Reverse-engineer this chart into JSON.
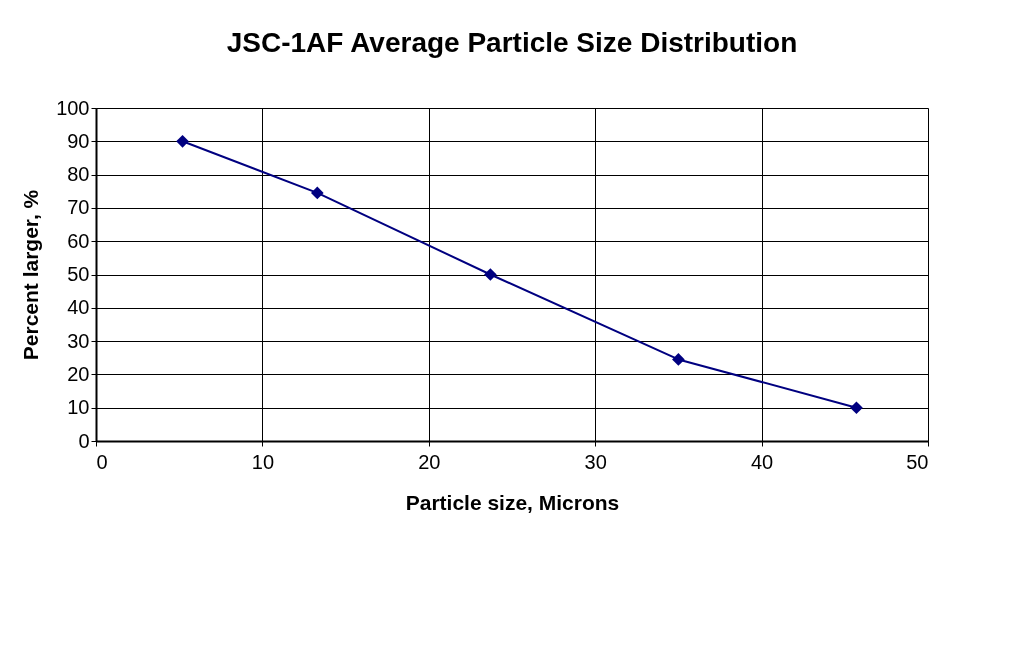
{
  "chart_data": {
    "type": "line",
    "title": "JSC-1AF Average Particle Size Distribution",
    "xlabel": "Particle size, Microns",
    "ylabel": "Percent larger, %",
    "x": [
      5.2,
      13.3,
      23.7,
      35.0,
      45.7
    ],
    "series": [
      {
        "color": "#000080",
        "values": [
          90,
          74.5,
          50,
          24.5,
          10
        ]
      }
    ],
    "xlim": [
      0,
      50
    ],
    "xticks": [
      0,
      10,
      20,
      30,
      40,
      50
    ],
    "ylim": [
      0,
      100
    ],
    "yticks": [
      0,
      10,
      20,
      30,
      40,
      50,
      60,
      70,
      80,
      90,
      100
    ],
    "grid": true,
    "marker": "diamond",
    "line_style": "solid"
  }
}
